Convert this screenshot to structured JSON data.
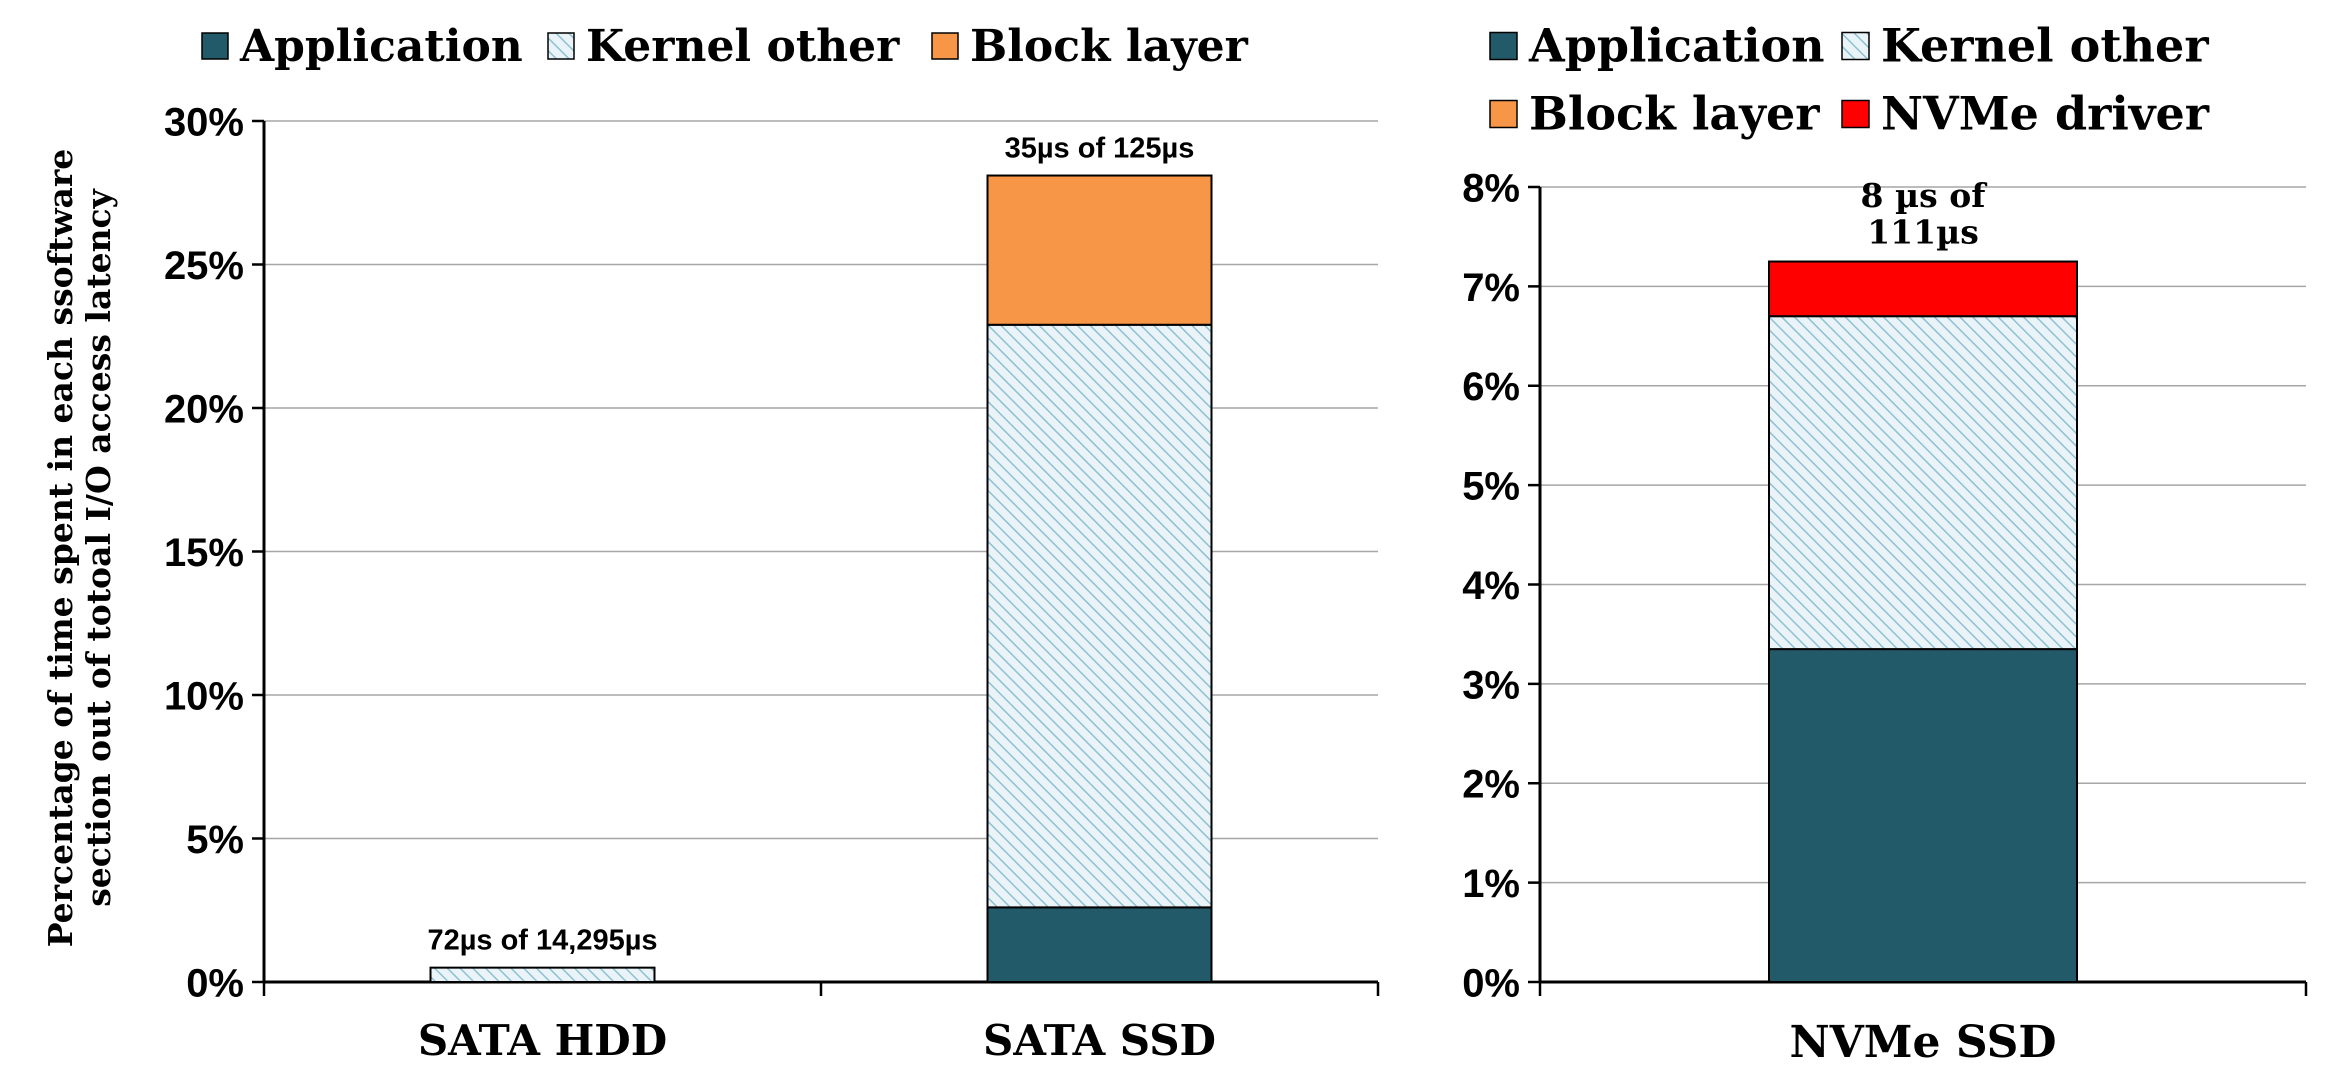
{
  "colors": {
    "application": "#235A69",
    "kernel_other_bg": "#EAF4F8",
    "kernel_other_hatch": "#8EC0D2",
    "block_layer": "#F79646",
    "nvme_driver": "#FF0000",
    "grid": "#A6A6A6",
    "axis": "#000000"
  },
  "chart_data": [
    {
      "type": "bar",
      "stacked": true,
      "ylabel_lines": [
        "Percentage of  time spent in each ssoftware",
        "section out of totoal I/O access latency"
      ],
      "yticks": [
        "0%",
        "5%",
        "10%",
        "15%",
        "20%",
        "25%",
        "30%"
      ],
      "ylim": [
        0,
        30
      ],
      "grid": true,
      "legend_position": "top",
      "legend": [
        {
          "key": "application",
          "label": "Application"
        },
        {
          "key": "kernel_other",
          "label": "Kernel other"
        },
        {
          "key": "block_layer",
          "label": "Block layer"
        }
      ],
      "categories": [
        "SATA HDD",
        "SATA SSD"
      ],
      "series": [
        {
          "name": "Application",
          "key": "application",
          "values": [
            0.0,
            2.6
          ]
        },
        {
          "name": "Kernel other",
          "key": "kernel_other",
          "values": [
            0.5,
            20.3
          ]
        },
        {
          "name": "Block layer",
          "key": "block_layer",
          "values": [
            0.0,
            5.2
          ]
        }
      ],
      "annotations": [
        {
          "category_index": 0,
          "lines": [
            "72µs of 14,295µs"
          ]
        },
        {
          "category_index": 1,
          "lines": [
            "35µs  of 125µs"
          ]
        }
      ]
    },
    {
      "type": "bar",
      "stacked": true,
      "yticks": [
        "0%",
        "1%",
        "2%",
        "3%",
        "4%",
        "5%",
        "6%",
        "7%",
        "8%"
      ],
      "ylim": [
        0,
        8
      ],
      "grid": true,
      "legend_position": "top",
      "legend": [
        {
          "key": "application",
          "label": "Application"
        },
        {
          "key": "kernel_other",
          "label": "Kernel other"
        },
        {
          "key": "block_layer",
          "label": "Block layer"
        },
        {
          "key": "nvme_driver",
          "label": "NVMe driver"
        }
      ],
      "categories": [
        "NVMe SSD"
      ],
      "series": [
        {
          "name": "Application",
          "key": "application",
          "values": [
            3.35
          ]
        },
        {
          "name": "Kernel other",
          "key": "kernel_other",
          "values": [
            3.35
          ]
        },
        {
          "name": "Block layer",
          "key": "block_layer",
          "values": [
            0.0
          ]
        },
        {
          "name": "NVMe driver",
          "key": "nvme_driver",
          "values": [
            0.55
          ]
        }
      ],
      "annotations": [
        {
          "category_index": 0,
          "lines": [
            "8 µs of",
            "111µs"
          ]
        }
      ]
    }
  ]
}
